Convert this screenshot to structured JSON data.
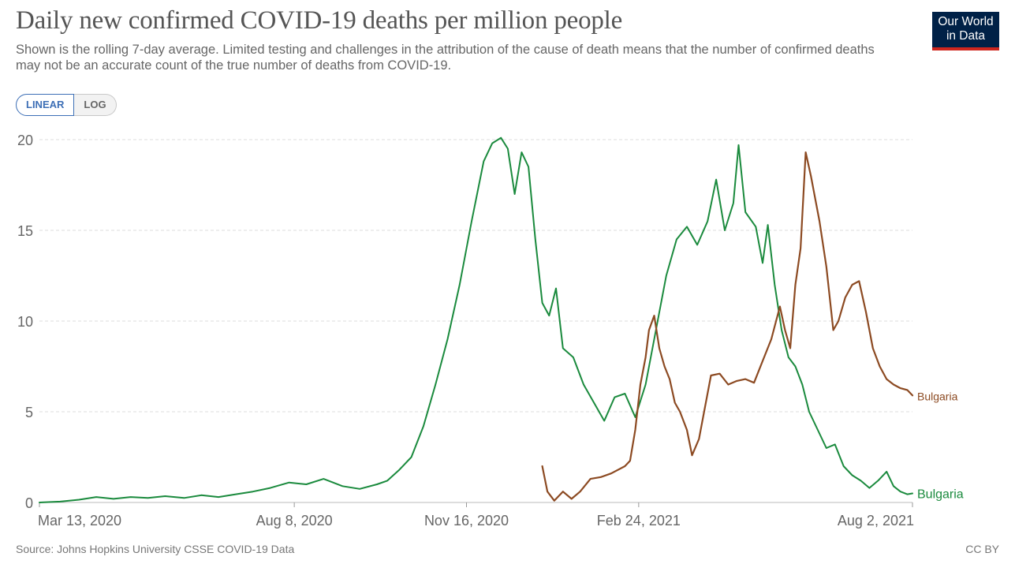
{
  "header": {
    "title": "Daily new confirmed COVID-19 deaths per million people",
    "subtitle": "Shown is the rolling 7-day average. Limited testing and challenges in the attribution of the cause of death means that the number of confirmed deaths may not be an accurate count of the true number of deaths from COVID-19."
  },
  "logo": {
    "line1": "Our World",
    "line2": "in Data"
  },
  "scale_toggle": {
    "linear_label": "LINEAR",
    "log_label": "LOG",
    "selected": "LINEAR"
  },
  "footer": {
    "source": "Source: Johns Hopkins University CSSE COVID-19 Data",
    "license": "CC BY"
  },
  "colors": {
    "bulgaria_green": "#1a8a3d",
    "second_series_brown": "#8c4a22",
    "grid": "#dddddd",
    "logo_bg": "#002147",
    "logo_accent": "#ce261e"
  },
  "chart_data": {
    "type": "line",
    "title": "Daily new confirmed COVID-19 deaths per million people",
    "xlabel": "",
    "ylabel": "",
    "x_tick_labels": [
      "Mar 13, 2020",
      "Aug 8, 2020",
      "Nov 16, 2020",
      "Feb 24, 2021",
      "Aug 2, 2021"
    ],
    "x_tick_dates": [
      "2020-03-13",
      "2020-08-08",
      "2020-11-16",
      "2021-02-24",
      "2021-08-02"
    ],
    "xlim": [
      "2020-03-13",
      "2021-08-02"
    ],
    "ylim": [
      0,
      20
    ],
    "y_ticks": [
      0,
      5,
      10,
      15,
      20
    ],
    "grid": "horizontal dashed",
    "series": [
      {
        "name": "Bulgaria",
        "color": "#1a8a3d",
        "points": [
          [
            "2020-03-13",
            0.0
          ],
          [
            "2020-03-25",
            0.05
          ],
          [
            "2020-04-05",
            0.15
          ],
          [
            "2020-04-15",
            0.3
          ],
          [
            "2020-04-25",
            0.2
          ],
          [
            "2020-05-05",
            0.3
          ],
          [
            "2020-05-15",
            0.25
          ],
          [
            "2020-05-25",
            0.35
          ],
          [
            "2020-06-05",
            0.25
          ],
          [
            "2020-06-15",
            0.4
          ],
          [
            "2020-06-25",
            0.3
          ],
          [
            "2020-07-05",
            0.45
          ],
          [
            "2020-07-15",
            0.6
          ],
          [
            "2020-07-25",
            0.8
          ],
          [
            "2020-08-05",
            1.1
          ],
          [
            "2020-08-15",
            1.0
          ],
          [
            "2020-08-25",
            1.3
          ],
          [
            "2020-09-05",
            0.9
          ],
          [
            "2020-09-15",
            0.75
          ],
          [
            "2020-09-25",
            1.0
          ],
          [
            "2020-10-01",
            1.2
          ],
          [
            "2020-10-08",
            1.8
          ],
          [
            "2020-10-15",
            2.5
          ],
          [
            "2020-10-22",
            4.2
          ],
          [
            "2020-10-29",
            6.5
          ],
          [
            "2020-11-05",
            9.0
          ],
          [
            "2020-11-12",
            12.0
          ],
          [
            "2020-11-19",
            15.5
          ],
          [
            "2020-11-26",
            18.8
          ],
          [
            "2020-12-01",
            19.8
          ],
          [
            "2020-12-06",
            20.1
          ],
          [
            "2020-12-10",
            19.5
          ],
          [
            "2020-12-14",
            17.0
          ],
          [
            "2020-12-18",
            19.3
          ],
          [
            "2020-12-22",
            18.5
          ],
          [
            "2020-12-26",
            14.5
          ],
          [
            "2020-12-30",
            11.0
          ],
          [
            "2021-01-03",
            10.3
          ],
          [
            "2021-01-07",
            11.8
          ],
          [
            "2021-01-11",
            8.5
          ],
          [
            "2021-01-17",
            8.0
          ],
          [
            "2021-01-23",
            6.5
          ],
          [
            "2021-01-29",
            5.5
          ],
          [
            "2021-02-04",
            4.5
          ],
          [
            "2021-02-10",
            5.8
          ],
          [
            "2021-02-16",
            6.0
          ],
          [
            "2021-02-22",
            4.7
          ],
          [
            "2021-02-28",
            6.5
          ],
          [
            "2021-03-06",
            9.5
          ],
          [
            "2021-03-12",
            12.5
          ],
          [
            "2021-03-18",
            14.5
          ],
          [
            "2021-03-24",
            15.2
          ],
          [
            "2021-03-30",
            14.2
          ],
          [
            "2021-04-05",
            15.5
          ],
          [
            "2021-04-10",
            17.8
          ],
          [
            "2021-04-15",
            15.0
          ],
          [
            "2021-04-20",
            16.5
          ],
          [
            "2021-04-23",
            19.7
          ],
          [
            "2021-04-27",
            16.0
          ],
          [
            "2021-05-03",
            15.2
          ],
          [
            "2021-05-07",
            13.2
          ],
          [
            "2021-05-10",
            15.3
          ],
          [
            "2021-05-14",
            12.0
          ],
          [
            "2021-05-18",
            9.5
          ],
          [
            "2021-05-22",
            8.0
          ],
          [
            "2021-05-26",
            7.5
          ],
          [
            "2021-05-30",
            6.5
          ],
          [
            "2021-06-03",
            5.0
          ],
          [
            "2021-06-08",
            4.0
          ],
          [
            "2021-06-13",
            3.0
          ],
          [
            "2021-06-18",
            3.2
          ],
          [
            "2021-06-23",
            2.0
          ],
          [
            "2021-06-28",
            1.5
          ],
          [
            "2021-07-03",
            1.2
          ],
          [
            "2021-07-08",
            0.8
          ],
          [
            "2021-07-13",
            1.2
          ],
          [
            "2021-07-18",
            1.7
          ],
          [
            "2021-07-22",
            0.9
          ],
          [
            "2021-07-26",
            0.6
          ],
          [
            "2021-07-30",
            0.45
          ],
          [
            "2021-08-02",
            0.5
          ]
        ]
      },
      {
        "name": "Bulgaria",
        "color": "#8c4a22",
        "points": [
          [
            "2020-12-30",
            2.0
          ],
          [
            "2021-01-02",
            0.6
          ],
          [
            "2021-01-06",
            0.1
          ],
          [
            "2021-01-11",
            0.6
          ],
          [
            "2021-01-16",
            0.2
          ],
          [
            "2021-01-21",
            0.6
          ],
          [
            "2021-01-27",
            1.3
          ],
          [
            "2021-02-02",
            1.4
          ],
          [
            "2021-02-08",
            1.6
          ],
          [
            "2021-02-16",
            2.0
          ],
          [
            "2021-02-19",
            2.3
          ],
          [
            "2021-02-22",
            4.0
          ],
          [
            "2021-02-25",
            6.5
          ],
          [
            "2021-02-28",
            8.0
          ],
          [
            "2021-03-02",
            9.5
          ],
          [
            "2021-03-05",
            10.3
          ],
          [
            "2021-03-08",
            8.5
          ],
          [
            "2021-03-11",
            7.5
          ],
          [
            "2021-03-14",
            6.8
          ],
          [
            "2021-03-17",
            5.5
          ],
          [
            "2021-03-20",
            5.0
          ],
          [
            "2021-03-24",
            4.0
          ],
          [
            "2021-03-27",
            2.6
          ],
          [
            "2021-03-31",
            3.5
          ],
          [
            "2021-04-03",
            5.0
          ],
          [
            "2021-04-07",
            7.0
          ],
          [
            "2021-04-12",
            7.1
          ],
          [
            "2021-04-17",
            6.5
          ],
          [
            "2021-04-22",
            6.7
          ],
          [
            "2021-04-27",
            6.8
          ],
          [
            "2021-05-02",
            6.6
          ],
          [
            "2021-05-07",
            7.8
          ],
          [
            "2021-05-12",
            9.0
          ],
          [
            "2021-05-17",
            10.8
          ],
          [
            "2021-05-20",
            9.5
          ],
          [
            "2021-05-23",
            8.5
          ],
          [
            "2021-05-26",
            12.0
          ],
          [
            "2021-05-29",
            14.0
          ],
          [
            "2021-06-01",
            19.3
          ],
          [
            "2021-06-04",
            18.0
          ],
          [
            "2021-06-09",
            15.5
          ],
          [
            "2021-06-13",
            13.0
          ],
          [
            "2021-06-17",
            9.5
          ],
          [
            "2021-06-20",
            10.0
          ],
          [
            "2021-06-24",
            11.3
          ],
          [
            "2021-06-28",
            12.0
          ],
          [
            "2021-07-02",
            12.2
          ],
          [
            "2021-07-06",
            10.5
          ],
          [
            "2021-07-10",
            8.5
          ],
          [
            "2021-07-14",
            7.5
          ],
          [
            "2021-07-18",
            6.8
          ],
          [
            "2021-07-22",
            6.5
          ],
          [
            "2021-07-26",
            6.3
          ],
          [
            "2021-07-30",
            6.2
          ],
          [
            "2021-08-02",
            5.9
          ]
        ]
      }
    ]
  }
}
